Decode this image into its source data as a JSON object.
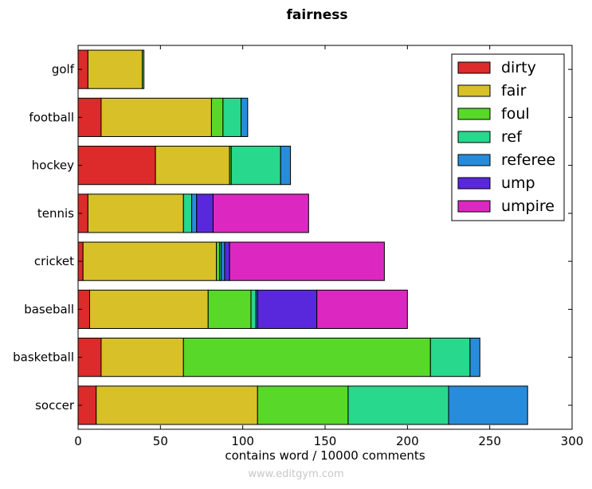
{
  "watermark": "www.editgym.com",
  "chart_data": {
    "type": "bar",
    "orientation": "horizontal",
    "stacked": true,
    "title": "fairness",
    "xlabel": "contains word / 10000 comments",
    "ylabel": "",
    "xlim": [
      0,
      300
    ],
    "xticks": [
      0,
      50,
      100,
      150,
      200,
      250,
      300
    ],
    "grid": false,
    "legend_position": "top-right",
    "categories": [
      "golf",
      "football",
      "hockey",
      "tennis",
      "cricket",
      "baseball",
      "basketball",
      "soccer"
    ],
    "series": [
      {
        "name": "dirty",
        "color": "#dd2a2a",
        "values": [
          6,
          14,
          47,
          6,
          3,
          7,
          14,
          11
        ]
      },
      {
        "name": "fair",
        "color": "#d8c028",
        "values": [
          33,
          67,
          45,
          58,
          81,
          72,
          50,
          98
        ]
      },
      {
        "name": "foul",
        "color": "#58d828",
        "values": [
          1,
          7,
          1,
          0,
          2,
          26,
          150,
          55
        ]
      },
      {
        "name": "ref",
        "color": "#28d88c",
        "values": [
          0,
          11,
          30,
          5,
          1,
          3,
          24,
          61
        ]
      },
      {
        "name": "referee",
        "color": "#288cdc",
        "values": [
          0,
          4,
          6,
          3,
          2,
          1,
          6,
          48
        ]
      },
      {
        "name": "ump",
        "color": "#5a28dc",
        "values": [
          0,
          0,
          0,
          10,
          3,
          36,
          0,
          0
        ]
      },
      {
        "name": "umpire",
        "color": "#dc28c0",
        "values": [
          0,
          0,
          0,
          58,
          94,
          55,
          0,
          0
        ]
      }
    ]
  }
}
